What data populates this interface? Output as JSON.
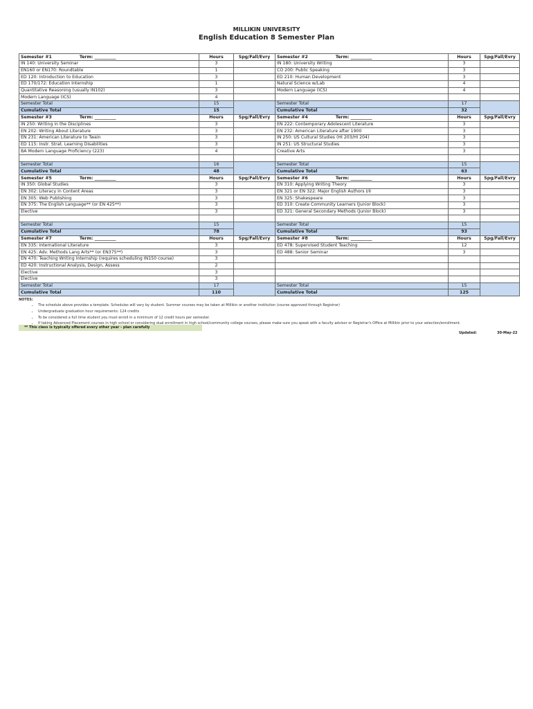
{
  "header": {
    "university": "MILLIKIN UNIVERSITY",
    "title": "English Education 8 Semester Plan"
  },
  "labels": {
    "hours": "Hours",
    "spg": "Spg/Fall/Evry",
    "term": "Term: __________",
    "semester_total": "Semester Total",
    "cumulative_total": "Cumulative Total"
  },
  "blocks": [
    {
      "left": {
        "name": "Semester #1",
        "courses": [
          [
            "IN 140: University Seminar",
            "3"
          ],
          [
            "EN160 or EN170: Roundtable",
            "1"
          ],
          [
            "ED 120: Introduction to Education",
            "3"
          ],
          [
            "ED 170/172: Education Internship",
            "1"
          ],
          [
            "Quantitative Reasoning (usually IN102)",
            "3"
          ],
          [
            "Modern Language (ICS)",
            "4"
          ]
        ],
        "semester_total": "15",
        "cumulative_total": "15"
      },
      "right": {
        "name": "Semester #2",
        "courses": [
          [
            "IN 180: University Writing",
            "3"
          ],
          [
            "CO 200: Public Speaking",
            "3"
          ],
          [
            "ED 210: Human Development",
            "3"
          ],
          [
            "Natural Science w/Lab",
            "4"
          ],
          [
            "Modern Language (ICS)",
            "4"
          ],
          [
            "",
            ""
          ]
        ],
        "semester_total": "17",
        "cumulative_total": "32"
      }
    },
    {
      "left": {
        "name": "Semester #3",
        "courses": [
          [
            "IN 250: Writing in the Disciplines",
            "3"
          ],
          [
            "EN 202: Writing About Literature",
            "3"
          ],
          [
            "EN 231: American Literature to Twain",
            "3"
          ],
          [
            "ED 115: Instr. Strat. Learning Disabilities",
            "3"
          ],
          [
            "BA Modern Language Proficiency (223)",
            "4"
          ],
          [
            "",
            ""
          ]
        ],
        "semester_total": "16",
        "cumulative_total": "48"
      },
      "right": {
        "name": "Semester #4",
        "courses": [
          [
            "EN 222: Contemporary Adolescent Literature",
            "3"
          ],
          [
            "EN 232: American Literature after 1900",
            "3"
          ],
          [
            "IN 250: US Cultural Studies (HI 203/HI 204)",
            "3"
          ],
          [
            "IN 251: US Structural Studies",
            "3"
          ],
          [
            "Creative Arts",
            "3"
          ],
          [
            "",
            ""
          ]
        ],
        "semester_total": "15",
        "cumulative_total": "63"
      }
    },
    {
      "left": {
        "name": "Semester #5",
        "courses": [
          [
            "IN 350: Global Studies",
            "3"
          ],
          [
            "EN 302: Literacy in Content Areas",
            "3"
          ],
          [
            "EN 305: Web Publishing",
            "3"
          ],
          [
            "EN 375: The English Language** (or EN 425**)",
            "3"
          ],
          [
            "Elective",
            "3"
          ],
          [
            "",
            ""
          ]
        ],
        "semester_total": "15",
        "cumulative_total": "78"
      },
      "right": {
        "name": "Semester #6",
        "courses": [
          [
            "EN 310: Applying Writing Theory",
            "3"
          ],
          [
            "EN 321 or EN 322: Major English Authors I/II",
            "3"
          ],
          [
            "EN 325: Shakespeare",
            "3"
          ],
          [
            "ED 310: Create Community Learners (Junior Block)",
            "3"
          ],
          [
            "ED 321: General Secondary Methods (Junior Block)",
            "3"
          ],
          [
            "",
            ""
          ]
        ],
        "semester_total": "15",
        "cumulative_total": "93"
      }
    },
    {
      "left": {
        "name": "Semester #7",
        "courses": [
          [
            "EN 335: International Literature",
            "3"
          ],
          [
            "EN 425: Adv. Methods Lang Arts** (or EN375**)",
            "3"
          ],
          [
            "EN 470: Teaching Writing Internship (requires scheduling IN150 course)",
            "3"
          ],
          [
            "ED 420: Instructional Analysis, Design, Assess",
            "2"
          ],
          [
            "Elective",
            "3"
          ],
          [
            "Elective",
            "3"
          ]
        ],
        "semester_total": "17",
        "cumulative_total": "110"
      },
      "right": {
        "name": "Semester #8",
        "courses": [
          [
            "ED 478: Supervised Student Teaching",
            "12"
          ],
          [
            "ED 488: Senior Seminar",
            "3"
          ],
          [
            "",
            ""
          ],
          [
            "",
            ""
          ],
          [
            "",
            ""
          ],
          [
            "",
            ""
          ]
        ],
        "semester_total": "15",
        "cumulative_total": "125"
      }
    }
  ],
  "notes": {
    "title": "NOTES:",
    "items": [
      "The schedule above provides a template.  Schedules will vary by student.  Summer courses may be taken at Millikin or another institution (course approved through Registrar)",
      "Undergraduate graduation hour requirements: 124 credits",
      "To be considered a full time student you must enroll in a minimum of 12 credit hours per semester.",
      "If taking Advanced Placement courses in high school or considering dual enrollment in high school/community college courses, please make sure you speak with a faculty advisor or Registrar's Office at Millikin prior to your selection/enrollment."
    ],
    "warning": "** This class is typically offered every other year - plan carefully"
  },
  "updated": {
    "label": "Updated:",
    "value": "30-May-22"
  }
}
